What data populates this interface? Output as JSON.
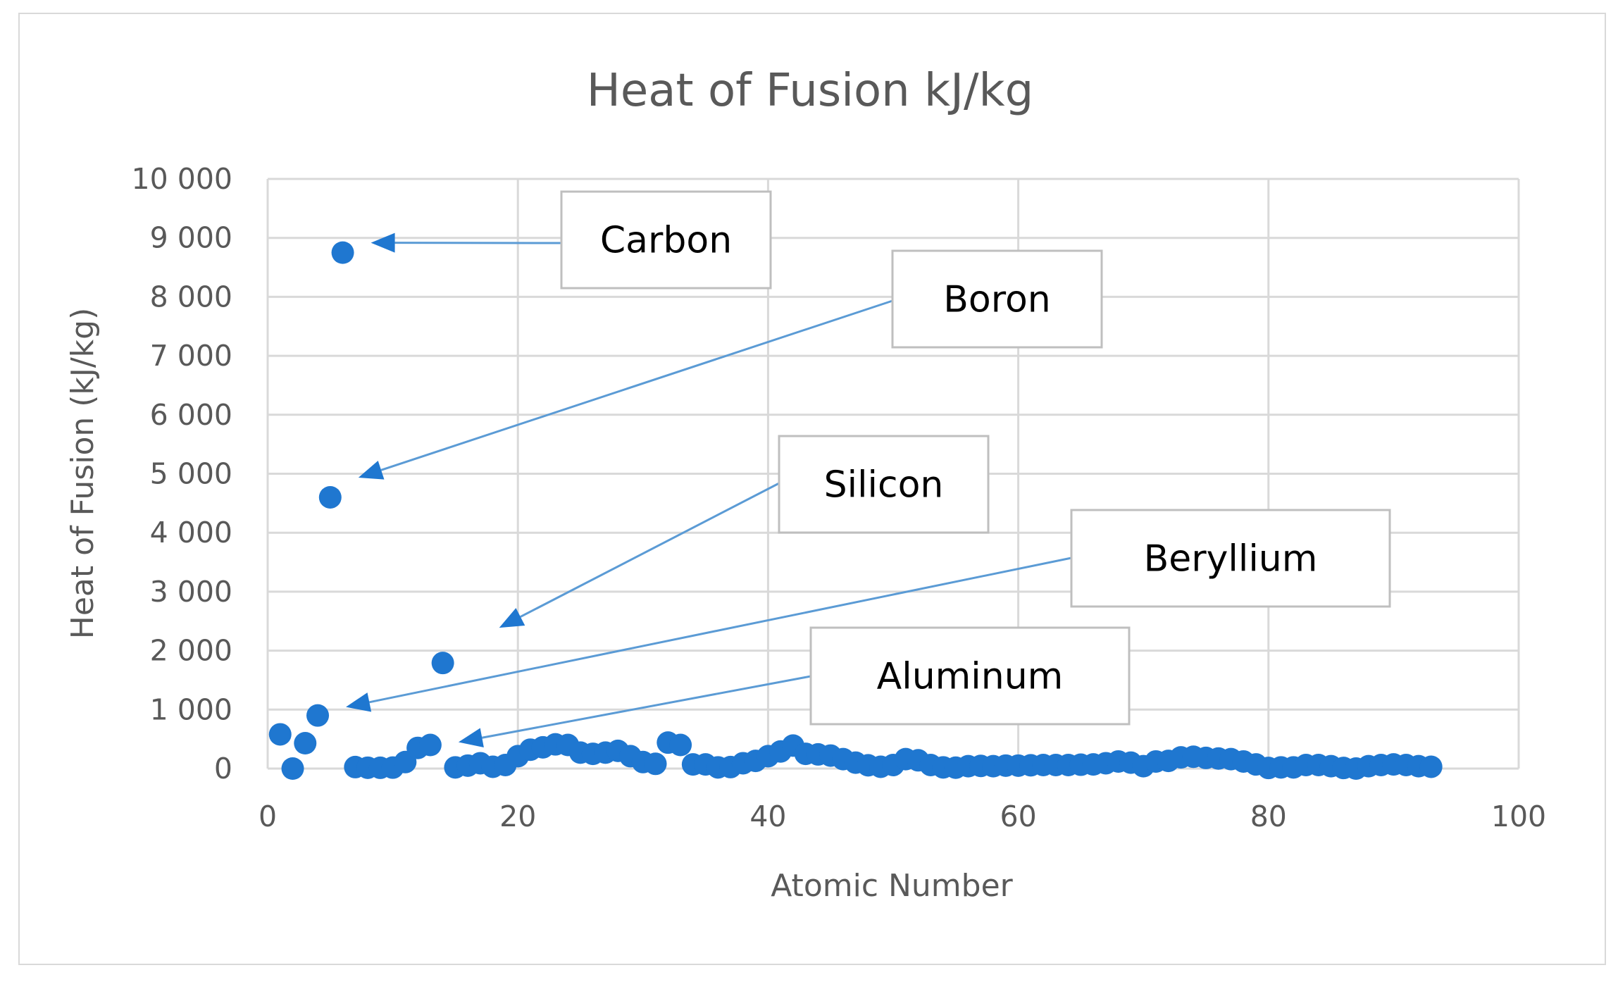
{
  "chart_data": {
    "type": "scatter",
    "title": "Heat of Fusion kJ/kg",
    "xlabel": "Atomic Number",
    "ylabel": "Heat of Fusion (kJ/kg)",
    "xlim": [
      0,
      100
    ],
    "ylim": [
      0,
      10000
    ],
    "x_ticks": [
      0,
      20,
      40,
      60,
      80,
      100
    ],
    "x_tick_labels": [
      "0",
      "20",
      "40",
      "60",
      "80",
      "100"
    ],
    "y_ticks": [
      0,
      1000,
      2000,
      3000,
      4000,
      5000,
      6000,
      7000,
      8000,
      9000,
      10000
    ],
    "y_tick_labels": [
      "0",
      "1 000",
      "2 000",
      "3 000",
      "4 000",
      "5 000",
      "6 000",
      "7 000",
      "8 000",
      "9 000",
      "10 000"
    ],
    "grid": true,
    "marker_color": "#1f77d0",
    "points": [
      [
        1,
        580
      ],
      [
        2,
        0
      ],
      [
        3,
        430
      ],
      [
        4,
        900
      ],
      [
        5,
        4600
      ],
      [
        6,
        8750
      ],
      [
        7,
        25
      ],
      [
        8,
        14
      ],
      [
        9,
        13
      ],
      [
        10,
        16
      ],
      [
        11,
        110
      ],
      [
        12,
        350
      ],
      [
        13,
        400
      ],
      [
        14,
        1790
      ],
      [
        15,
        20
      ],
      [
        16,
        50
      ],
      [
        17,
        90
      ],
      [
        18,
        30
      ],
      [
        19,
        60
      ],
      [
        20,
        210
      ],
      [
        21,
        320
      ],
      [
        22,
        360
      ],
      [
        23,
        410
      ],
      [
        24,
        400
      ],
      [
        25,
        270
      ],
      [
        26,
        250
      ],
      [
        27,
        270
      ],
      [
        28,
        300
      ],
      [
        29,
        210
      ],
      [
        30,
        110
      ],
      [
        31,
        80
      ],
      [
        32,
        440
      ],
      [
        33,
        400
      ],
      [
        34,
        70
      ],
      [
        35,
        70
      ],
      [
        36,
        20
      ],
      [
        37,
        25
      ],
      [
        38,
        90
      ],
      [
        39,
        130
      ],
      [
        40,
        210
      ],
      [
        41,
        290
      ],
      [
        42,
        390
      ],
      [
        43,
        250
      ],
      [
        44,
        240
      ],
      [
        45,
        220
      ],
      [
        46,
        160
      ],
      [
        47,
        100
      ],
      [
        48,
        55
      ],
      [
        49,
        30
      ],
      [
        50,
        60
      ],
      [
        51,
        160
      ],
      [
        52,
        140
      ],
      [
        53,
        60
      ],
      [
        54,
        20
      ],
      [
        55,
        15
      ],
      [
        56,
        40
      ],
      [
        57,
        45
      ],
      [
        58,
        40
      ],
      [
        59,
        50
      ],
      [
        60,
        50
      ],
      [
        61,
        55
      ],
      [
        62,
        60
      ],
      [
        63,
        60
      ],
      [
        64,
        60
      ],
      [
        65,
        65
      ],
      [
        66,
        70
      ],
      [
        67,
        90
      ],
      [
        68,
        120
      ],
      [
        69,
        100
      ],
      [
        70,
        40
      ],
      [
        71,
        120
      ],
      [
        72,
        130
      ],
      [
        73,
        190
      ],
      [
        74,
        200
      ],
      [
        75,
        180
      ],
      [
        76,
        170
      ],
      [
        77,
        160
      ],
      [
        78,
        120
      ],
      [
        79,
        70
      ],
      [
        80,
        10
      ],
      [
        81,
        20
      ],
      [
        82,
        20
      ],
      [
        83,
        60
      ],
      [
        84,
        60
      ],
      [
        85,
        40
      ],
      [
        86,
        10
      ],
      [
        87,
        0
      ],
      [
        88,
        40
      ],
      [
        89,
        60
      ],
      [
        90,
        70
      ],
      [
        91,
        60
      ],
      [
        92,
        40
      ],
      [
        93,
        30
      ]
    ],
    "annotations": [
      {
        "label": "Carbon",
        "target": [
          6,
          8750
        ]
      },
      {
        "label": "Boron",
        "target": [
          5,
          4600
        ]
      },
      {
        "label": "Silicon",
        "target": [
          14,
          1790
        ]
      },
      {
        "label": "Beryllium",
        "target": [
          4,
          900
        ]
      },
      {
        "label": "Aluminum",
        "target": [
          13,
          400
        ]
      }
    ]
  }
}
